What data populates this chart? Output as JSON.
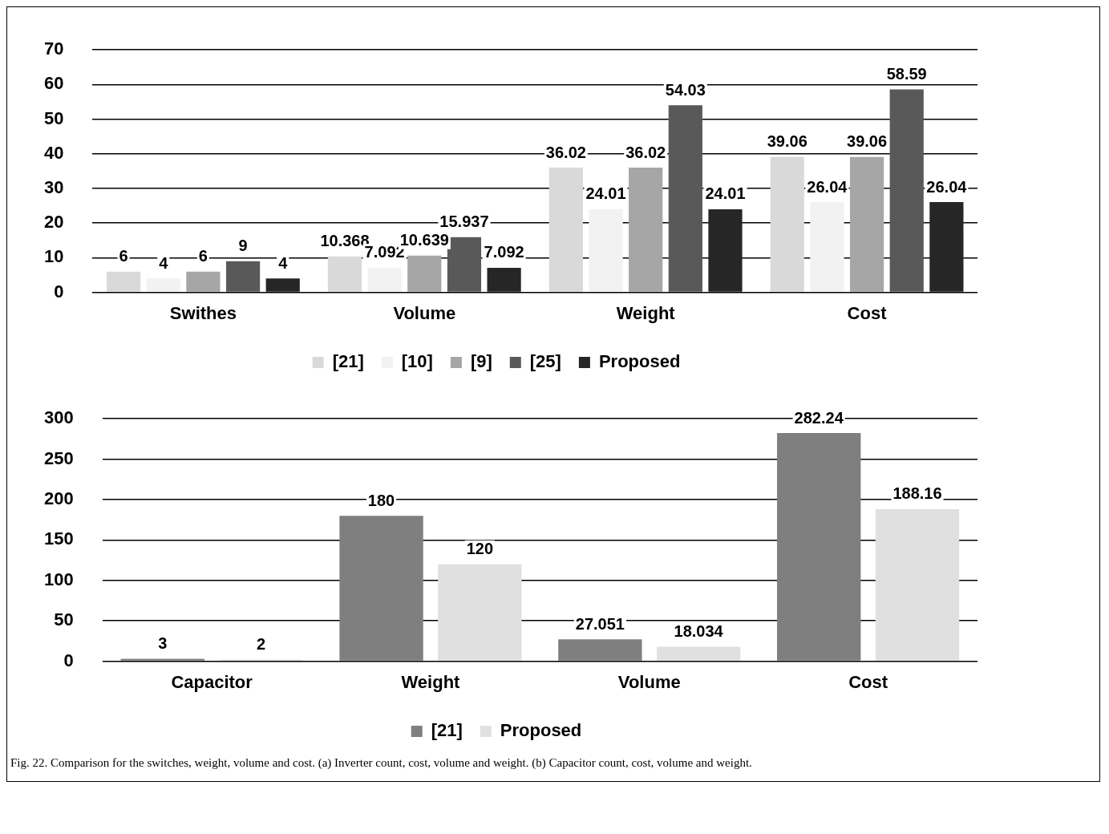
{
  "chart_data": [
    {
      "type": "bar",
      "categories": [
        "Swithes",
        "Volume",
        "Weight",
        "Cost"
      ],
      "series": [
        {
          "name": "[21]",
          "color": "#d9d9d9",
          "values": [
            6,
            10.368,
            36.02,
            39.06
          ]
        },
        {
          "name": "[10]",
          "color": "#f2f2f2",
          "values": [
            4,
            7.092,
            24.01,
            26.04
          ]
        },
        {
          "name": "[9]",
          "color": "#a6a6a6",
          "values": [
            6,
            10.639,
            36.02,
            39.06
          ]
        },
        {
          "name": "[25]",
          "color": "#595959",
          "values": [
            9,
            15.937,
            54.03,
            58.59
          ]
        },
        {
          "name": "Proposed",
          "color": "#262626",
          "values": [
            4,
            7.092,
            24.01,
            26.04
          ]
        }
      ],
      "ylim": [
        0,
        70
      ],
      "yticks": [
        0,
        10,
        20,
        30,
        40,
        50,
        60,
        70
      ],
      "grid": "y",
      "legend": "bottom",
      "data_labels": true
    },
    {
      "type": "bar",
      "categories": [
        "Capacitor",
        "Weight",
        "Volume",
        "Cost"
      ],
      "series": [
        {
          "name": "[21]",
          "color": "#7f7f7f",
          "values": [
            3,
            180,
            27.051,
            282.24
          ]
        },
        {
          "name": "Proposed",
          "color": "#e0e0e0",
          "values": [
            2,
            120,
            18.034,
            188.16
          ]
        }
      ],
      "ylim": [
        0,
        300
      ],
      "yticks": [
        0,
        50,
        100,
        150,
        200,
        250,
        300
      ],
      "grid": "y",
      "legend": "bottom",
      "data_labels": true,
      "annotations": [
        "Fig. 22. Comparison for the switches, weight, volume and cost. (a) Inverter count, cost, volume and weight. (b) Capacitor count, cost, volume and weight."
      ]
    }
  ]
}
